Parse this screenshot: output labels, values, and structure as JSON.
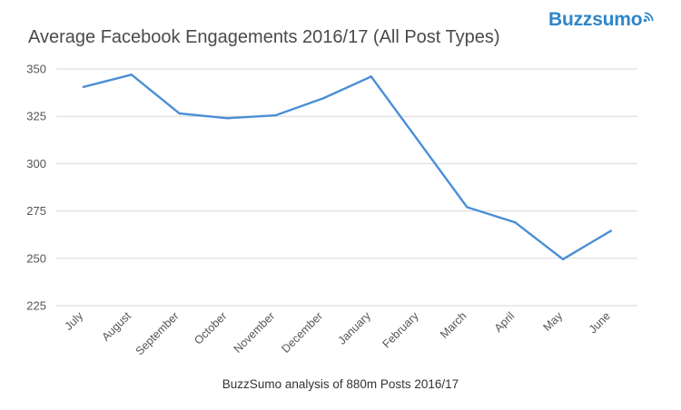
{
  "brand": {
    "name": "Buzzsumo",
    "icon": "signal-icon",
    "color": "#2f86c8"
  },
  "caption": "BuzzSumo analysis of 880m Posts 2016/17",
  "chart_data": {
    "type": "line",
    "title": "Average Facebook Engagements 2016/17 (All Post Types)",
    "xlabel": "",
    "ylabel": "",
    "categories": [
      "July",
      "August",
      "September",
      "October",
      "November",
      "December",
      "January",
      "February",
      "March",
      "April",
      "May",
      "June"
    ],
    "series": [
      {
        "values": [
          340.5,
          347,
          326.5,
          324,
          325.5,
          334.5,
          346,
          311.5,
          277,
          269,
          249.5,
          264.5
        ],
        "color": "#4a8fd6"
      }
    ],
    "ylim": [
      225,
      350
    ],
    "yticks": [
      350,
      325,
      300,
      275,
      250,
      225
    ],
    "grid": true,
    "legend": "none"
  }
}
